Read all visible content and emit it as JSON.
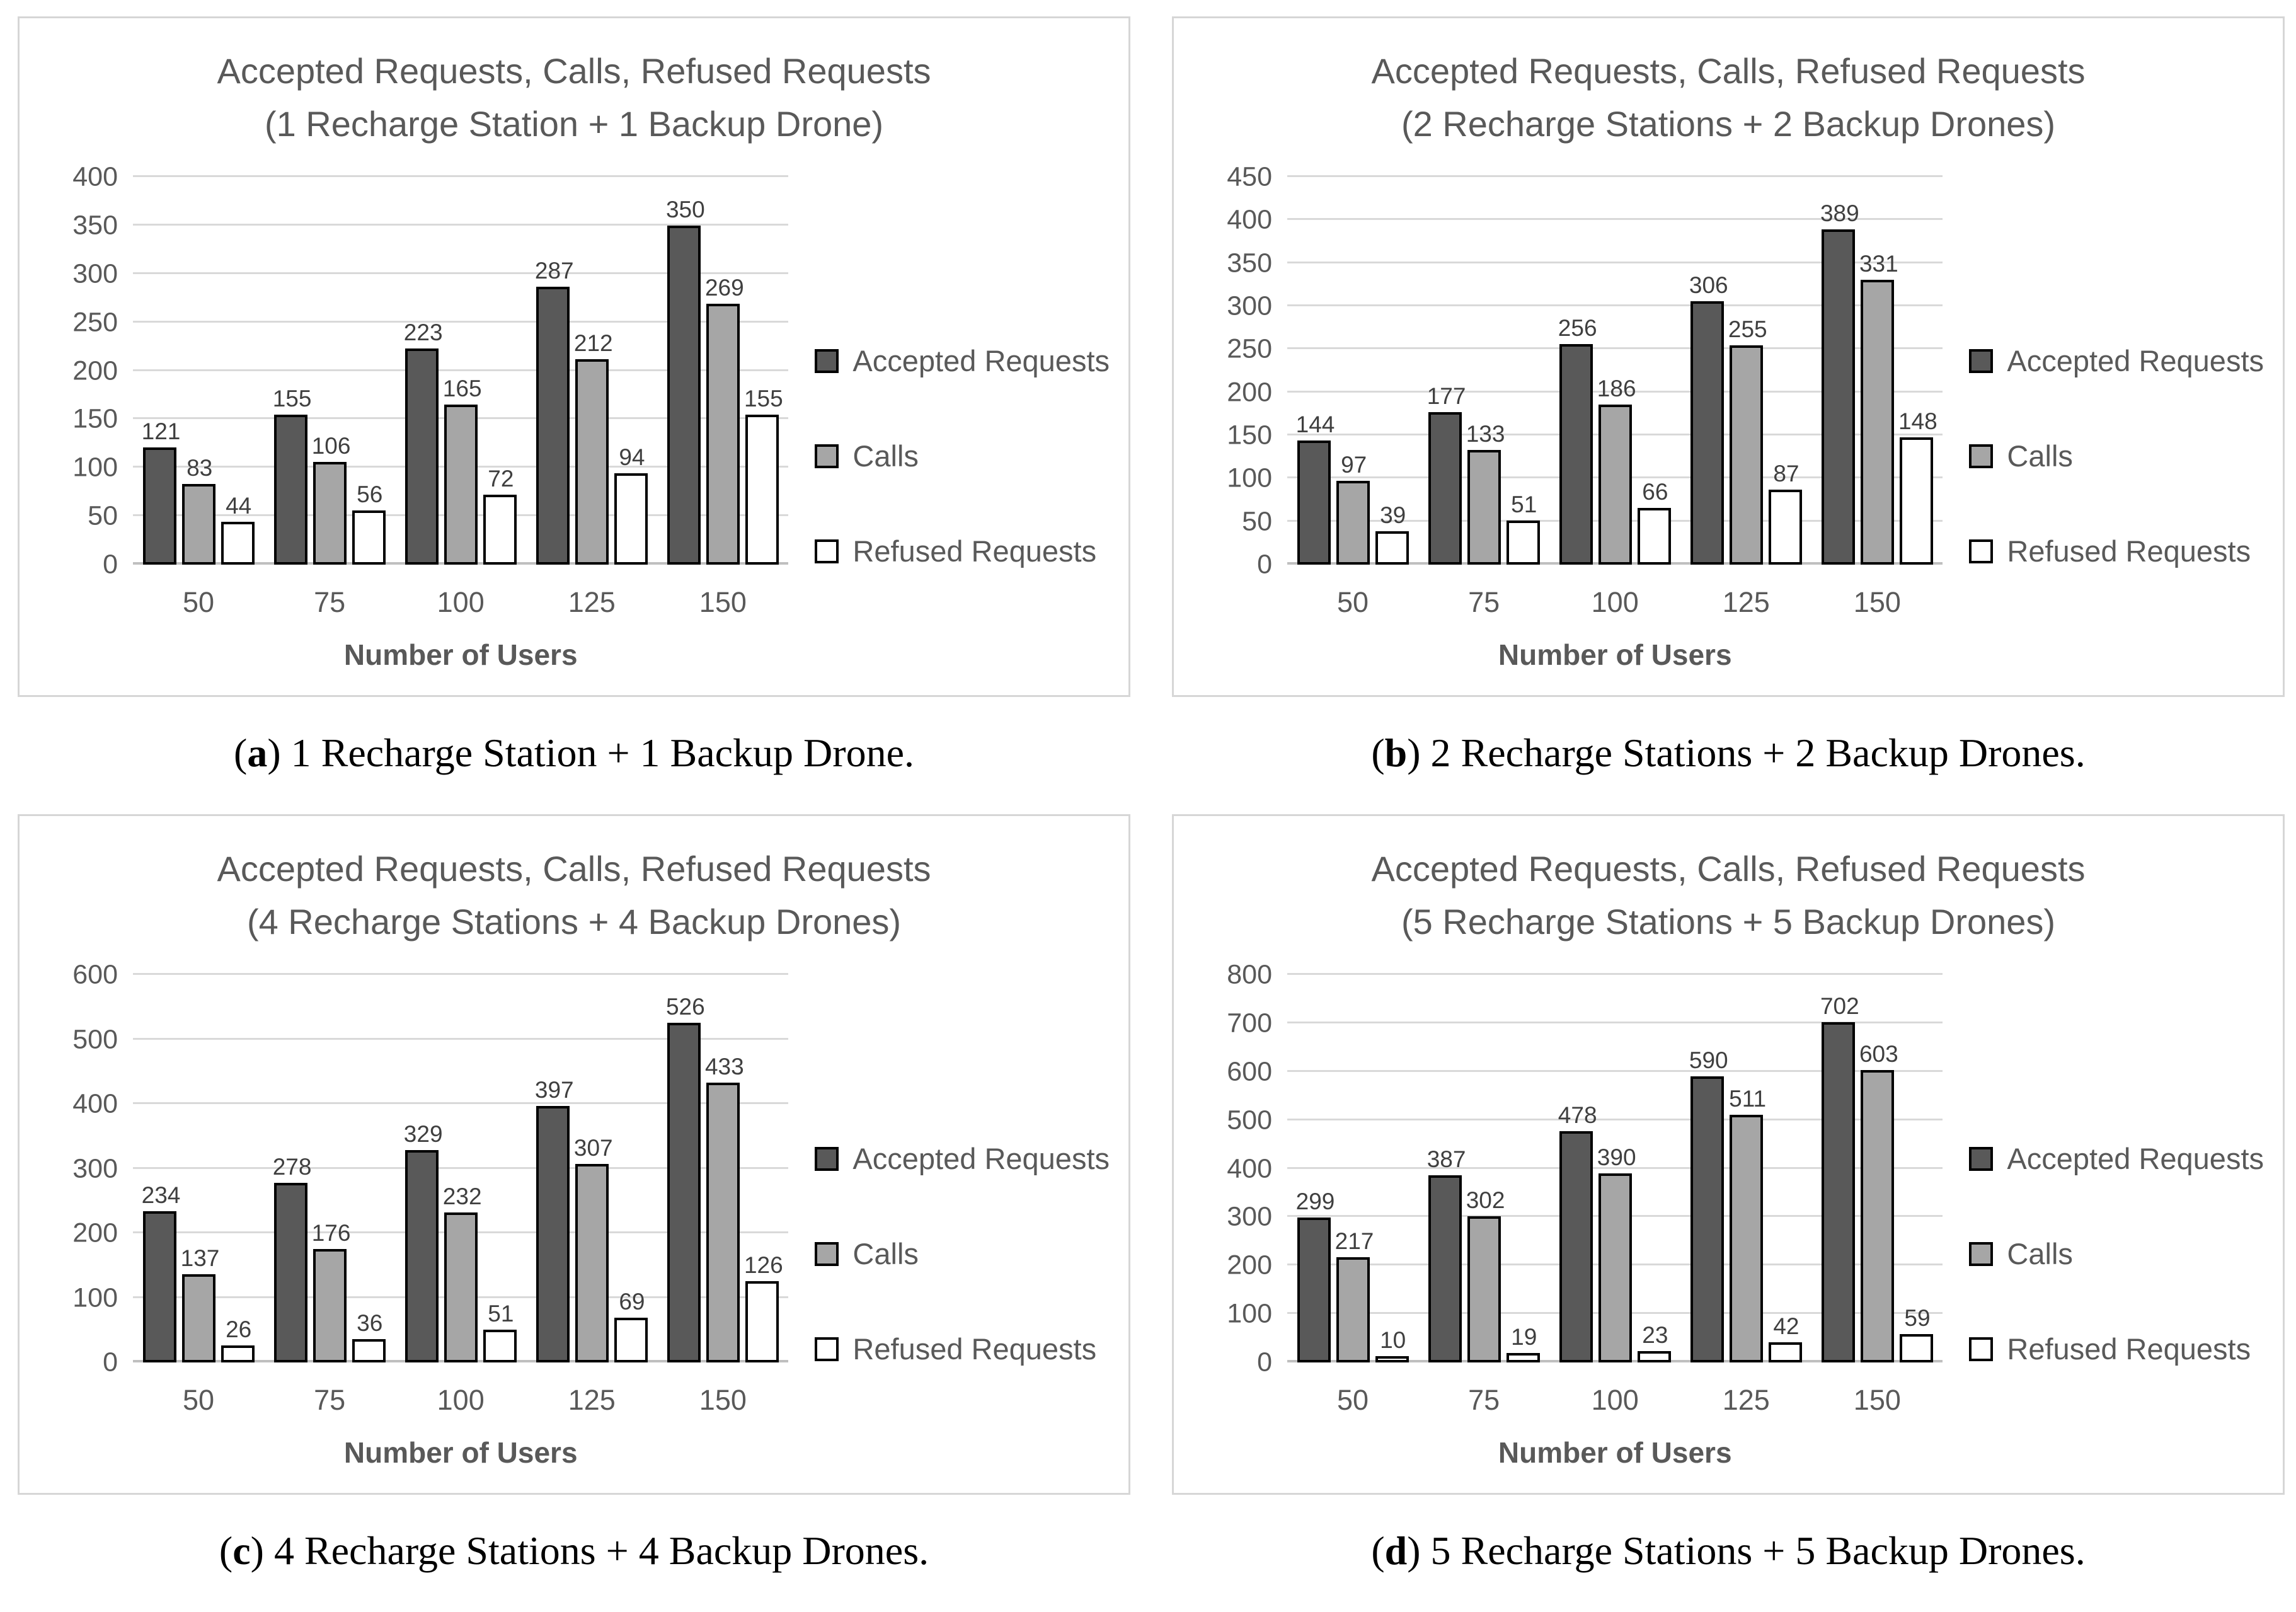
{
  "colors": {
    "accepted_bar": "#595959",
    "calls_bar": "#a6a6a6",
    "refused_bar": "#ffffff",
    "bar_border": "#000000",
    "grid_line": "#d9d9d9",
    "axis_text": "#595959",
    "title_text": "#595959",
    "caption_text": "#000000"
  },
  "legend": {
    "items": [
      "Accepted Requests",
      "Calls",
      "Refused Requests"
    ]
  },
  "captions": [
    {
      "label": "a",
      "text": "1 Recharge Station + 1 Backup Drone."
    },
    {
      "label": "b",
      "text": "2 Recharge Stations + 2 Backup Drones."
    },
    {
      "label": "c",
      "text": "4 Recharge Stations + 4 Backup Drones."
    },
    {
      "label": "d",
      "text": "5 Recharge Stations + 5 Backup Drones."
    }
  ],
  "chart_data": [
    {
      "type": "bar",
      "title": "Accepted Requests, Calls, Refused Requests",
      "subtitle": "(1 Recharge Station + 1 Backup Drone)",
      "categories": [
        "50",
        "75",
        "100",
        "125",
        "150"
      ],
      "series": [
        {
          "name": "Accepted Requests",
          "color": "#595959",
          "values": [
            121,
            155,
            223,
            287,
            350
          ]
        },
        {
          "name": "Calls",
          "color": "#a6a6a6",
          "values": [
            83,
            106,
            165,
            212,
            269
          ]
        },
        {
          "name": "Refused Requests",
          "color": "#ffffff",
          "values": [
            44,
            56,
            72,
            94,
            155
          ]
        }
      ],
      "xlabel": "Number of Users",
      "ylabel": "",
      "ylim": [
        0,
        400
      ],
      "ytick_step": 50,
      "grid": true,
      "legend_position": "right"
    },
    {
      "type": "bar",
      "title": "Accepted Requests, Calls, Refused Requests",
      "subtitle": "(2 Recharge Stations + 2 Backup Drones)",
      "categories": [
        "50",
        "75",
        "100",
        "125",
        "150"
      ],
      "series": [
        {
          "name": "Accepted Requests",
          "color": "#595959",
          "values": [
            144,
            177,
            256,
            306,
            389
          ]
        },
        {
          "name": "Calls",
          "color": "#a6a6a6",
          "values": [
            97,
            133,
            186,
            255,
            331
          ]
        },
        {
          "name": "Refused Requests",
          "color": "#ffffff",
          "values": [
            39,
            51,
            66,
            87,
            148
          ]
        }
      ],
      "xlabel": "Number of Users",
      "ylabel": "",
      "ylim": [
        0,
        450
      ],
      "ytick_step": 50,
      "grid": true,
      "legend_position": "right"
    },
    {
      "type": "bar",
      "title": "Accepted Requests, Calls, Refused Requests",
      "subtitle": "(4 Recharge Stations + 4 Backup Drones)",
      "categories": [
        "50",
        "75",
        "100",
        "125",
        "150"
      ],
      "series": [
        {
          "name": "Accepted Requests",
          "color": "#595959",
          "values": [
            234,
            278,
            329,
            397,
            526
          ]
        },
        {
          "name": "Calls",
          "color": "#a6a6a6",
          "values": [
            137,
            176,
            232,
            307,
            433
          ]
        },
        {
          "name": "Refused Requests",
          "color": "#ffffff",
          "values": [
            26,
            36,
            51,
            69,
            126
          ]
        }
      ],
      "xlabel": "Number of Users",
      "ylabel": "",
      "ylim": [
        0,
        600
      ],
      "ytick_step": 100,
      "grid": true,
      "legend_position": "right"
    },
    {
      "type": "bar",
      "title": "Accepted Requests, Calls, Refused Requests",
      "subtitle": "(5 Recharge Stations + 5 Backup Drones)",
      "categories": [
        "50",
        "75",
        "100",
        "125",
        "150"
      ],
      "series": [
        {
          "name": "Accepted Requests",
          "color": "#595959",
          "values": [
            299,
            387,
            478,
            590,
            702
          ]
        },
        {
          "name": "Calls",
          "color": "#a6a6a6",
          "values": [
            217,
            302,
            390,
            511,
            603
          ]
        },
        {
          "name": "Refused Requests",
          "color": "#ffffff",
          "values": [
            10,
            19,
            23,
            42,
            59
          ]
        }
      ],
      "xlabel": "Number of Users",
      "ylabel": "",
      "ylim": [
        0,
        800
      ],
      "ytick_step": 100,
      "grid": true,
      "legend_position": "right"
    }
  ]
}
